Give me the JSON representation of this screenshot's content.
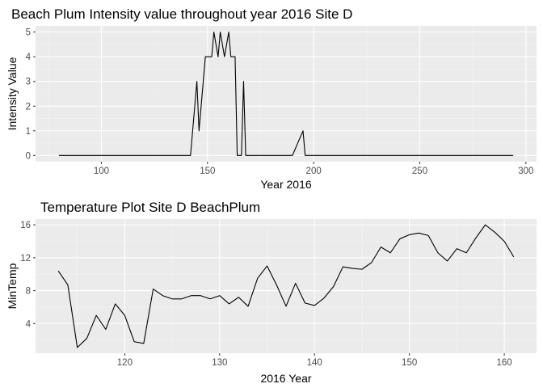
{
  "chart_data": [
    {
      "type": "line",
      "title": "Beach Plum Intensity value throughout year 2016 Site D",
      "xlabel": "Year 2016",
      "ylabel": "Intensity Value",
      "xlim": [
        69,
        305
      ],
      "ylim": [
        -0.25,
        5.25
      ],
      "xticks": [
        100,
        150,
        200,
        250,
        300
      ],
      "yticks": [
        0,
        1,
        2,
        3,
        4,
        5
      ],
      "grid": true,
      "legend": "none",
      "line_color": "#000000",
      "panel_color": "#ebebeb",
      "x": [
        80,
        142,
        145,
        146,
        148,
        149,
        152,
        153,
        155,
        156,
        158,
        160,
        161,
        163,
        164,
        165,
        166,
        167,
        168,
        190,
        195,
        196,
        294
      ],
      "y": [
        0,
        0,
        3,
        1,
        3,
        4,
        4,
        5,
        4,
        5,
        4,
        5,
        4,
        4,
        0,
        0,
        0,
        3,
        0,
        0,
        1,
        0,
        0
      ]
    },
    {
      "type": "line",
      "title": "Temperature Plot Site D BeachPlum",
      "xlabel": "2016 Year",
      "ylabel": "MinTemp",
      "xlim": [
        110.6,
        163.4
      ],
      "ylim": [
        0.4,
        16.7
      ],
      "xticks": [
        120,
        130,
        140,
        150,
        160
      ],
      "yticks": [
        4,
        8,
        12,
        16
      ],
      "grid": true,
      "legend": "none",
      "line_color": "#000000",
      "panel_color": "#ebebeb",
      "x": [
        113,
        114,
        115,
        116,
        117,
        118,
        119,
        120,
        121,
        122,
        123,
        124,
        125,
        126,
        127,
        128,
        129,
        130,
        131,
        132,
        133,
        134,
        135,
        136,
        137,
        138,
        139,
        140,
        141,
        142,
        143,
        144,
        145,
        146,
        147,
        148,
        149,
        150,
        151,
        152,
        153,
        154,
        155,
        156,
        157,
        158,
        159,
        160,
        161
      ],
      "y": [
        10.4,
        8.7,
        1.1,
        2.2,
        5.0,
        3.3,
        6.4,
        5.0,
        1.8,
        1.6,
        8.2,
        7.4,
        7.0,
        7.0,
        7.4,
        7.4,
        7.0,
        7.4,
        6.4,
        7.2,
        6.1,
        9.5,
        11.0,
        8.7,
        6.1,
        8.9,
        6.5,
        6.2,
        7.1,
        8.5,
        10.9,
        10.7,
        10.6,
        11.4,
        13.3,
        12.6,
        14.3,
        14.8,
        15.0,
        14.7,
        12.6,
        11.6,
        13.1,
        12.6,
        14.4,
        16.0,
        15.1,
        14.0,
        12.1
      ]
    }
  ]
}
